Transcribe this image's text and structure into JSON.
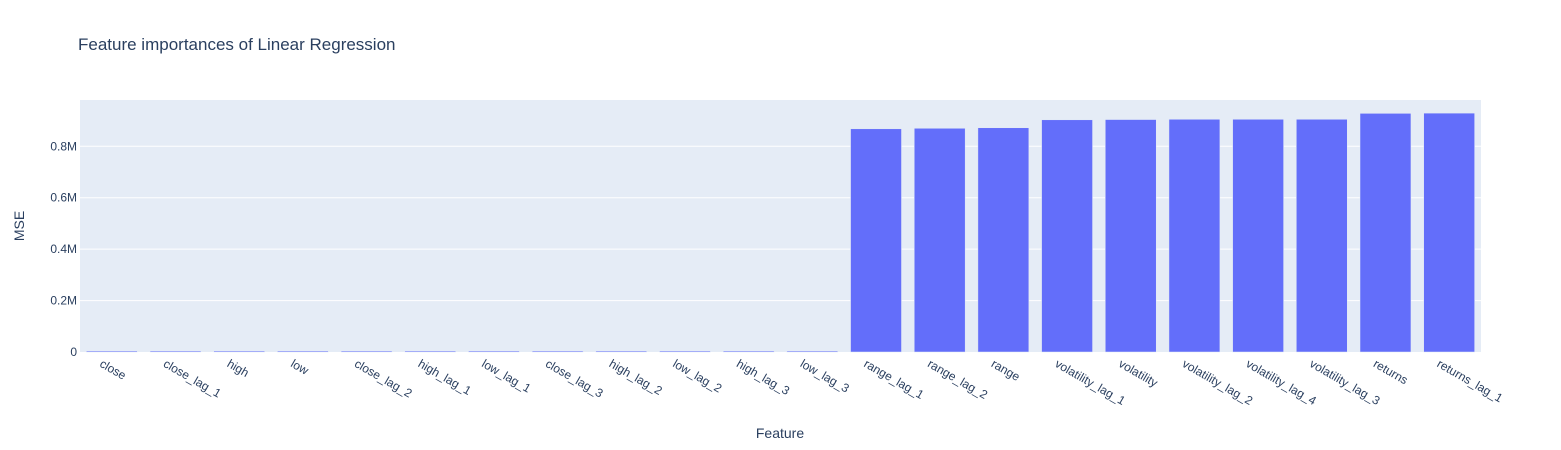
{
  "chart_data": {
    "type": "bar",
    "title": "Feature importances of Linear Regression",
    "xlabel": "Feature",
    "ylabel": "MSE",
    "categories": [
      "close",
      "close_lag_1",
      "high",
      "low",
      "close_lag_2",
      "high_lag_1",
      "low_lag_1",
      "close_lag_3",
      "high_lag_2",
      "low_lag_2",
      "high_lag_3",
      "low_lag_3",
      "range_lag_1",
      "range_lag_2",
      "range",
      "volatility_lag_1",
      "volatility",
      "volatility_lag_2",
      "volatility_lag_4",
      "volatility_lag_3",
      "returns",
      "returns_lag_1"
    ],
    "values": [
      0,
      0,
      0,
      0,
      0,
      0,
      0,
      0,
      0,
      0,
      0,
      0,
      868000,
      870000,
      872000,
      903000,
      904000,
      905000,
      905000,
      905000,
      928000,
      929000
    ],
    "ylim": [
      0,
      980000
    ],
    "yticks": [
      0,
      200000,
      400000,
      600000,
      800000
    ],
    "ytick_labels": [
      "0",
      "0.2M",
      "0.4M",
      "0.6M",
      "0.8M"
    ],
    "grid": true,
    "colors": {
      "bar": "#636efa",
      "plot_bg": "#e5ecf6",
      "grid": "#ffffff",
      "text": "#2a3f5f"
    }
  }
}
